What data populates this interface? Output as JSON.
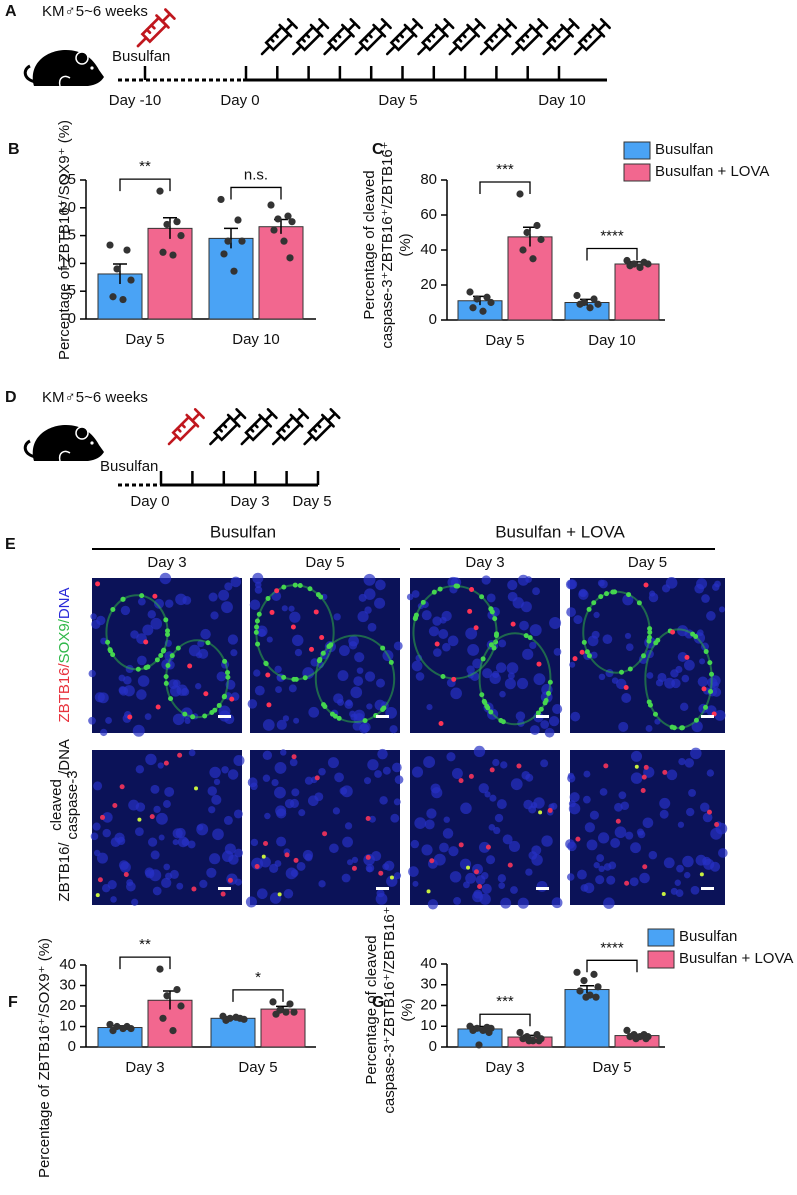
{
  "figure_a": {
    "label": "A",
    "strain": "KM♂5~6 weeks",
    "drug": "Busulfan",
    "day_labels": [
      "Day -10",
      "Day 0",
      "Day 5",
      "Day 10"
    ]
  },
  "figure_d": {
    "label": "D",
    "strain": "KM♂5~6 weeks",
    "drug": "Busulfan",
    "day_labels": [
      "Day 0",
      "Day 3",
      "Day 5"
    ]
  },
  "figure_e": {
    "label": "E",
    "groups": [
      "Busulfan",
      "Busulfan + LOVA"
    ],
    "columns": [
      "Day 3",
      "Day 5",
      "Day 3",
      "Day 5"
    ],
    "row_labels": [
      {
        "parts": [
          {
            "text": "ZBTB16/",
            "color": "#e8323c"
          },
          {
            "text": "SOX9/",
            "color": "#2fb84a"
          },
          {
            "text": "DNA",
            "color": "#2a2ad8"
          }
        ]
      },
      {
        "parts": [
          {
            "text": "ZBTB16/",
            "color": "#e8323c"
          },
          {
            "text": "cleaved",
            "color": "#2fb84a"
          },
          {
            "text": "caspase-3",
            "color": "#2fb84a"
          },
          {
            "text": "/DNA",
            "color": "#2a2ad8"
          }
        ]
      }
    ]
  },
  "chart_data": [
    {
      "panel": "B",
      "type": "bar",
      "ylabel": [
        "Percentage of ZBTB16⁺/SOX9⁺ (%)"
      ],
      "categories": [
        "Day 5",
        "Day 10"
      ],
      "series": [
        {
          "color": "#4aa3f5",
          "values": [
            8.1,
            14.5
          ],
          "errors": [
            1.8,
            1.8
          ],
          "points": [
            [
              13.3,
              12.4,
              9,
              7,
              4,
              3.5
            ],
            [
              21.5,
              17.8,
              14,
              14,
              11.7,
              8.6
            ]
          ]
        },
        {
          "color": "#f2678f",
          "values": [
            16.3,
            16.6
          ],
          "errors": [
            1.9,
            1.3
          ],
          "points": [
            [
              23,
              17.5,
              17,
              15,
              12,
              11.5
            ],
            [
              20.5,
              18.5,
              18,
              17.5,
              16,
              14,
              11
            ]
          ]
        }
      ],
      "ylim": [
        0,
        25
      ],
      "yticks": [
        0,
        5,
        10,
        15,
        20,
        25
      ],
      "significance": [
        "**",
        "n.s."
      ]
    },
    {
      "panel": "C",
      "type": "bar",
      "ylabel": [
        "Percentage of cleaved",
        "caspase-3⁺ZBTB16⁺/ZBTB16⁺",
        "(%)"
      ],
      "categories": [
        "Day 5",
        "Day 10"
      ],
      "series": [
        {
          "name": "Busulfan",
          "color": "#4aa3f5",
          "values": [
            11,
            10
          ],
          "errors": [
            2.5,
            1.8
          ],
          "points": [
            [
              16,
              13,
              12,
              10,
              7,
              5
            ],
            [
              14,
              12,
              10,
              9,
              9,
              7
            ]
          ]
        },
        {
          "name": "Busulfan + LOVA",
          "color": "#f2678f",
          "values": [
            47.5,
            32
          ],
          "errors": [
            5.5,
            1.2
          ],
          "points": [
            [
              72,
              54,
              50,
              46,
              40,
              35
            ],
            [
              34,
              33,
              32,
              32,
              31,
              30
            ]
          ]
        }
      ],
      "ylim": [
        0,
        80
      ],
      "yticks": [
        0,
        20,
        40,
        60,
        80
      ],
      "significance": [
        "***",
        "****"
      ],
      "legend": "top-right"
    },
    {
      "panel": "F",
      "type": "bar",
      "ylabel": [
        "Percentage of ZBTB16⁺/SOX9⁺ (%)"
      ],
      "categories": [
        "Day 3",
        "Day 5"
      ],
      "series": [
        {
          "color": "#4aa3f5",
          "values": [
            9.5,
            14
          ],
          "errors": [
            0.8,
            0.7
          ],
          "points": [
            [
              11,
              10,
              10,
              9,
              8,
              9
            ],
            [
              15,
              14,
              14,
              13.5,
              13,
              14.5
            ]
          ]
        },
        {
          "color": "#f2678f",
          "values": [
            22.8,
            18.5
          ],
          "errors": [
            4.5,
            1.3
          ],
          "points": [
            [
              38,
              28,
              25,
              20,
              14,
              8
            ],
            [
              22,
              21,
              18,
              17,
              16,
              17
            ]
          ]
        }
      ],
      "ylim": [
        0,
        40
      ],
      "yticks": [
        0,
        10,
        20,
        30,
        40
      ],
      "significance": [
        "**",
        "*"
      ]
    },
    {
      "panel": "G",
      "type": "bar",
      "ylabel": [
        "Percentage of cleaved",
        "caspase-3⁺ZBTB16⁺/ZBTB16⁺",
        "(%)"
      ],
      "categories": [
        "Day 3",
        "Day 5"
      ],
      "series": [
        {
          "name": "Busulfan",
          "color": "#4aa3f5",
          "values": [
            8.7,
            27.7
          ],
          "errors": [
            1.2,
            1.8
          ],
          "points": [
            [
              10,
              9.5,
              9,
              9,
              8,
              8,
              7,
              1
            ],
            [
              36,
              35,
              32,
              29,
              27,
              25,
              24,
              24
            ]
          ]
        },
        {
          "name": "Busulfan + LOVA",
          "color": "#f2678f",
          "values": [
            4.8,
            5.5
          ],
          "errors": [
            0.8,
            0.6
          ],
          "points": [
            [
              7,
              6,
              5,
              4,
              4,
              3,
              3,
              3
            ],
            [
              8,
              6,
              6,
              5,
              5,
              5,
              4,
              4
            ]
          ]
        }
      ],
      "ylim": [
        0,
        40
      ],
      "yticks": [
        0,
        10,
        20,
        30,
        40
      ],
      "significance": [
        "***",
        "****"
      ],
      "legend": "top-right"
    }
  ]
}
